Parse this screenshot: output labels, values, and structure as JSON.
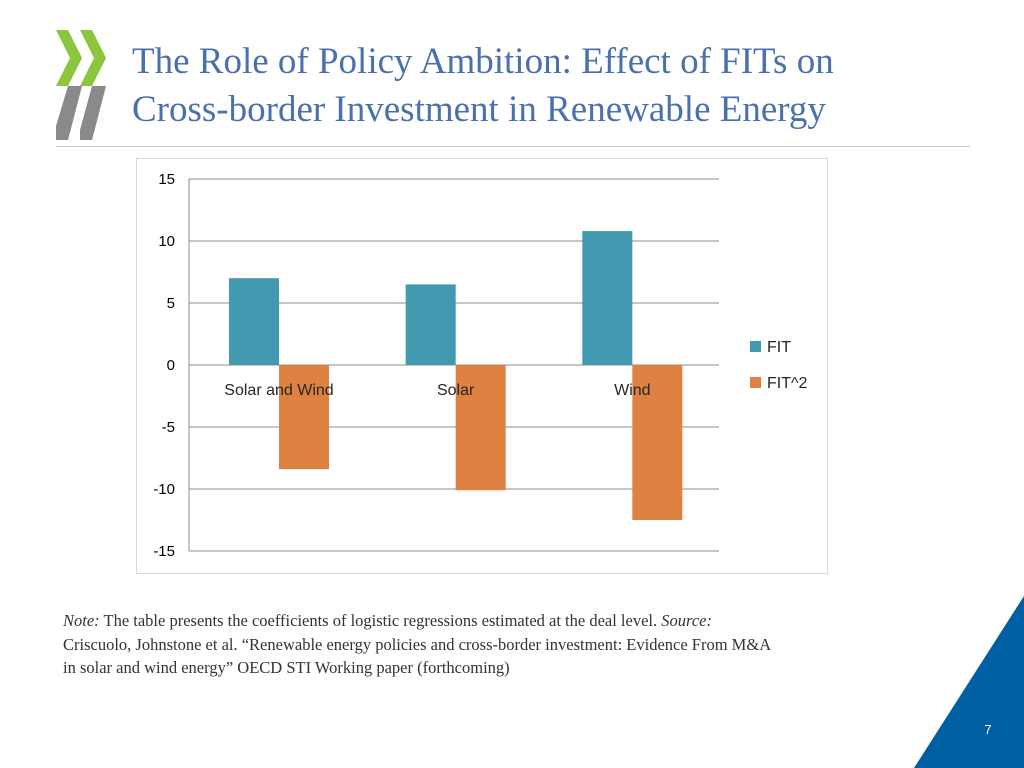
{
  "slide": {
    "title_line1": "The Role of Policy Ambition: Effect of FITs on",
    "title_line2": "Cross-border Investment in Renewable Energy",
    "note_label": "Note:",
    "note_text": " The table presents the coefficients of logistic regressions estimated at the deal level.  ",
    "source_label": "Source:",
    "source_text": " Criscuolo, Johnstone et al. “Renewable energy policies and cross-border investment: Evidence From M&A in solar and wind energy” OECD STI Working paper (forthcoming)",
    "page_number": "7",
    "colors": {
      "title": "#4a70ad",
      "logo_green": "#8cc63f",
      "logo_gray": "#8a8a8a",
      "corner_blue": "#005fa3"
    }
  },
  "chart_data": {
    "type": "bar",
    "categories": [
      "Solar and Wind",
      "Solar",
      "Wind"
    ],
    "series": [
      {
        "name": "FIT",
        "values": [
          7.0,
          6.5,
          10.8
        ],
        "color": "#4299b0"
      },
      {
        "name": "FIT^2",
        "values": [
          -8.4,
          -10.1,
          -12.5
        ],
        "color": "#dd8240"
      }
    ],
    "title": "",
    "xlabel": "",
    "ylabel": "",
    "ylim": [
      -15,
      15
    ],
    "yticks": [
      "15",
      "10",
      "5",
      "0",
      "-5",
      "-10",
      "-15"
    ],
    "grid": true,
    "legend": "right"
  }
}
